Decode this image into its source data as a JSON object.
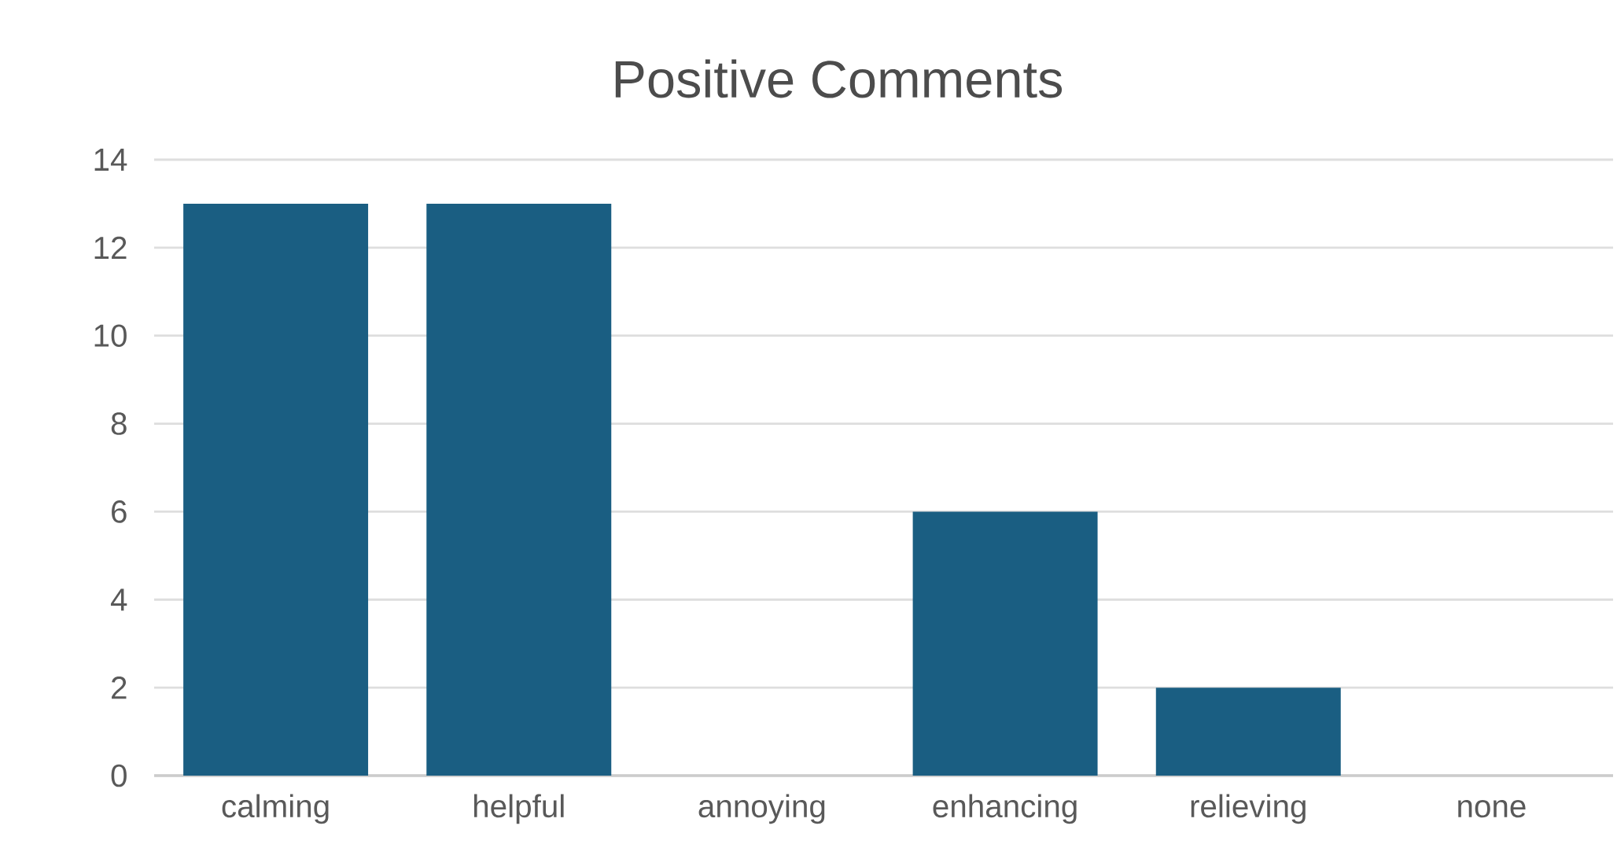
{
  "chart_data": {
    "type": "bar",
    "title": "Positive Comments",
    "categories": [
      "calming",
      "helpful",
      "annoying",
      "enhancing",
      "relieving",
      "none"
    ],
    "values": [
      13,
      13,
      0,
      6,
      2,
      0
    ],
    "color": "#1a5e82",
    "ylim": [
      0,
      14
    ],
    "yticks": [
      0,
      2,
      4,
      6,
      8,
      10,
      12,
      14
    ],
    "grid": "y"
  }
}
